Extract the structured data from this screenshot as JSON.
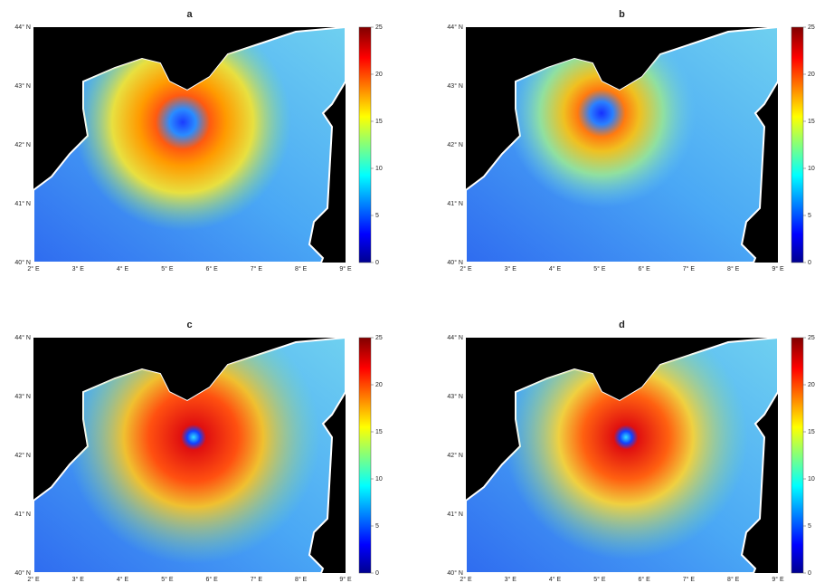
{
  "panels": [
    {
      "title": "a",
      "lat_labels": [
        "44° N",
        "43° N",
        "42° N",
        "41° N",
        "40° N"
      ],
      "lon_labels": [
        "2° E",
        "3° E",
        "4° E",
        "5° E",
        "6° E",
        "7° E",
        "8° E",
        "9° E"
      ],
      "colorbar_ticks": [
        25,
        20,
        15,
        10,
        5,
        0
      ]
    },
    {
      "title": "b",
      "lat_labels": [
        "44° N",
        "43° N",
        "42° N",
        "41° N",
        "40° N"
      ],
      "lon_labels": [
        "2° E",
        "3° E",
        "4° E",
        "5° E",
        "6° E",
        "7° E",
        "8° E",
        "9° E"
      ],
      "colorbar_ticks": [
        25,
        20,
        15,
        10,
        5,
        0
      ]
    },
    {
      "title": "c",
      "lat_labels": [
        "44° N",
        "43° N",
        "42° N",
        "41° N",
        "40° N"
      ],
      "lon_labels": [
        "2° E",
        "3° E",
        "4° E",
        "5° E",
        "6° E",
        "7° E",
        "8° E",
        "9° E"
      ],
      "colorbar_ticks": [
        25,
        20,
        15,
        10,
        5,
        0
      ]
    },
    {
      "title": "d",
      "lat_labels": [
        "44° N",
        "43° N",
        "42° N",
        "41° N",
        "40° N"
      ],
      "lon_labels": [
        "2° E",
        "3° E",
        "4° E",
        "5° E",
        "6° E",
        "7° E",
        "8° E",
        "9° E"
      ],
      "colorbar_ticks": [
        25,
        20,
        15,
        10,
        5,
        0
      ]
    }
  ]
}
